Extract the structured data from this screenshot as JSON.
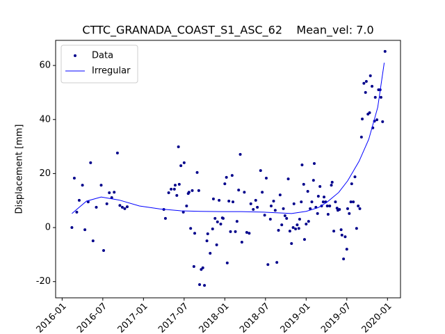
{
  "chart_data": {
    "type": "scatter",
    "title": "CTTC_GRANADA_COAST_S1_ASC_62    Mean_vel: 7.0",
    "y_label": "Displacement [mm]",
    "xlim": [
      2015.92,
      2020.16
    ],
    "ylim": [
      -26,
      69.3
    ],
    "xticks": [
      {
        "value": 2016.0,
        "label": "2016-01"
      },
      {
        "value": 2016.5,
        "label": "2016-07"
      },
      {
        "value": 2017.0,
        "label": "2017-01"
      },
      {
        "value": 2017.5,
        "label": "2017-07"
      },
      {
        "value": 2018.0,
        "label": "2018-01"
      },
      {
        "value": 2018.5,
        "label": "2018-07"
      },
      {
        "value": 2019.0,
        "label": "2019-01"
      },
      {
        "value": 2019.5,
        "label": "2019-07"
      },
      {
        "value": 2020.0,
        "label": "2020-01"
      }
    ],
    "yticks": [
      -20,
      0,
      20,
      40,
      60
    ],
    "legend": "upper left",
    "series": [
      {
        "name": "Data",
        "color": "#00008b",
        "style": "marker",
        "x": [
          2016.12,
          2016.15,
          2016.18,
          2016.21,
          2016.25,
          2016.28,
          2016.32,
          2016.35,
          2016.38,
          2016.42,
          2016.48,
          2016.51,
          2016.55,
          2016.58,
          2016.61,
          2016.64,
          2016.68,
          2016.71,
          2016.74,
          2016.77,
          2016.8,
          2017.25,
          2017.27,
          2017.31,
          2017.34,
          2017.38,
          2017.39,
          2017.41,
          2017.43,
          2017.44,
          2017.46,
          2017.49,
          2017.5,
          2017.53,
          2017.55,
          2017.56,
          2017.58,
          2017.6,
          2017.62,
          2017.63,
          2017.66,
          2017.68,
          2017.69,
          2017.71,
          2017.73,
          2017.75,
          2017.78,
          2017.79,
          2017.82,
          2017.85,
          2017.86,
          2017.88,
          2017.9,
          2017.91,
          2017.93,
          2017.95,
          2017.97,
          2017.98,
          2018.0,
          2018.02,
          2018.03,
          2018.05,
          2018.07,
          2018.09,
          2018.1,
          2018.13,
          2018.15,
          2018.17,
          2018.19,
          2018.21,
          2018.24,
          2018.27,
          2018.3,
          2018.32,
          2018.35,
          2018.38,
          2018.4,
          2018.44,
          2018.46,
          2018.49,
          2018.51,
          2018.53,
          2018.56,
          2018.57,
          2018.6,
          2018.62,
          2018.64,
          2018.66,
          2018.68,
          2018.7,
          2018.72,
          2018.74,
          2018.76,
          2018.78,
          2018.8,
          2018.82,
          2018.84,
          2018.85,
          2018.87,
          2018.89,
          2018.91,
          2018.92,
          2018.94,
          2018.95,
          2018.97,
          2018.98,
          2019.0,
          2019.02,
          2019.03,
          2019.05,
          2019.07,
          2019.09,
          2019.1,
          2019.12,
          2019.14,
          2019.15,
          2019.17,
          2019.19,
          2019.21,
          2019.22,
          2019.24,
          2019.26,
          2019.27,
          2019.29,
          2019.31,
          2019.32,
          2019.34,
          2019.36,
          2019.38,
          2019.39,
          2019.41,
          2019.43,
          2019.44,
          2019.46,
          2019.48,
          2019.5,
          2019.51,
          2019.53,
          2019.55,
          2019.56,
          2019.58,
          2019.6,
          2019.62,
          2019.64,
          2019.66,
          2019.68,
          2019.69,
          2019.71,
          2019.73,
          2019.74,
          2019.76,
          2019.78,
          2019.79,
          2019.81,
          2019.82,
          2019.84,
          2019.85,
          2019.87,
          2019.89,
          2019.91,
          2019.92,
          2019.94,
          2019.97
        ],
        "values": [
          0,
          18.3,
          5.7,
          10.1,
          15.7,
          -0.8,
          9.5,
          24.0,
          -4.9,
          7.5,
          15.7,
          -8.5,
          8.8,
          12.9,
          11.1,
          13.1,
          27.6,
          8.2,
          7.5,
          7.0,
          7.7,
          6.7,
          3.4,
          12.9,
          14.2,
          14.2,
          15.7,
          11.9,
          29.9,
          16.0,
          22.9,
          5.7,
          24.0,
          8.0,
          12.6,
          13.1,
          -0.3,
          13.7,
          -14.4,
          -2.1,
          20.4,
          13.7,
          -21.1,
          -15.5,
          -14.9,
          -21.4,
          -4.9,
          -2.3,
          -9.5,
          -0.5,
          10.6,
          3.4,
          -6.4,
          2.1,
          10.1,
          1.3,
          3.6,
          3.4,
          16.2,
          18.6,
          -13.1,
          9.8,
          -1.5,
          19.3,
          9.5,
          -1.5,
          2.3,
          13.9,
          27.1,
          -5.4,
          13.1,
          -1.8,
          -2.1,
          8.8,
          6.7,
          10.1,
          7.5,
          21.1,
          13.1,
          4.6,
          18.3,
          -13.7,
          3.1,
          8.0,
          9.8,
          6.4,
          -12.9,
          -1.0,
          12.1,
          1.0,
          7.0,
          4.4,
          3.4,
          18.0,
          -1.3,
          -5.9,
          0,
          8.8,
          -0.5,
          1.0,
          -0.3,
          3.1,
          9.5,
          23.2,
          16.0,
          -4.4,
          1.3,
          13.4,
          2.3,
          7.0,
          9.5,
          17.5,
          23.7,
          7.5,
          5.2,
          11.6,
          15.2,
          8.0,
          9.5,
          11.3,
          9.5,
          8.0,
          4.9,
          8.0,
          15.7,
          16.8,
          -1.3,
          9.5,
          7.2,
          6.4,
          6.7,
          -0.8,
          -2.8,
          -11.6,
          -3.4,
          -8.0,
          7.0,
          5.2,
          9.5,
          16.2,
          9.5,
          18.8,
          -0.3,
          8.0,
          7.0,
          33.5,
          40.2,
          53.4,
          50.0,
          54.1,
          42.0,
          42.5,
          56.2,
          52.3,
          36.9,
          39.4,
          48.2,
          39.9,
          51.0,
          51.0,
          48.2,
          39.2,
          65.2
        ]
      },
      {
        "name": "Irregular",
        "color": "#0000ff",
        "style": "line",
        "x": [
          2016.12,
          2016.3,
          2016.48,
          2016.7,
          2016.95,
          2017.2,
          2017.46,
          2017.7,
          2017.97,
          2018.2,
          2018.48,
          2018.7,
          2018.82,
          2019.0,
          2019.15,
          2019.26,
          2019.4,
          2019.51,
          2019.65,
          2019.77,
          2019.88,
          2019.96
        ],
        "values": [
          5.2,
          9.8,
          11.3,
          10.2,
          8.0,
          6.9,
          6.2,
          6.0,
          5.9,
          5.9,
          5.7,
          5.4,
          5.2,
          6.0,
          7.4,
          9.5,
          13.0,
          17.3,
          24.5,
          32.7,
          44.5,
          61.0
        ]
      }
    ]
  }
}
